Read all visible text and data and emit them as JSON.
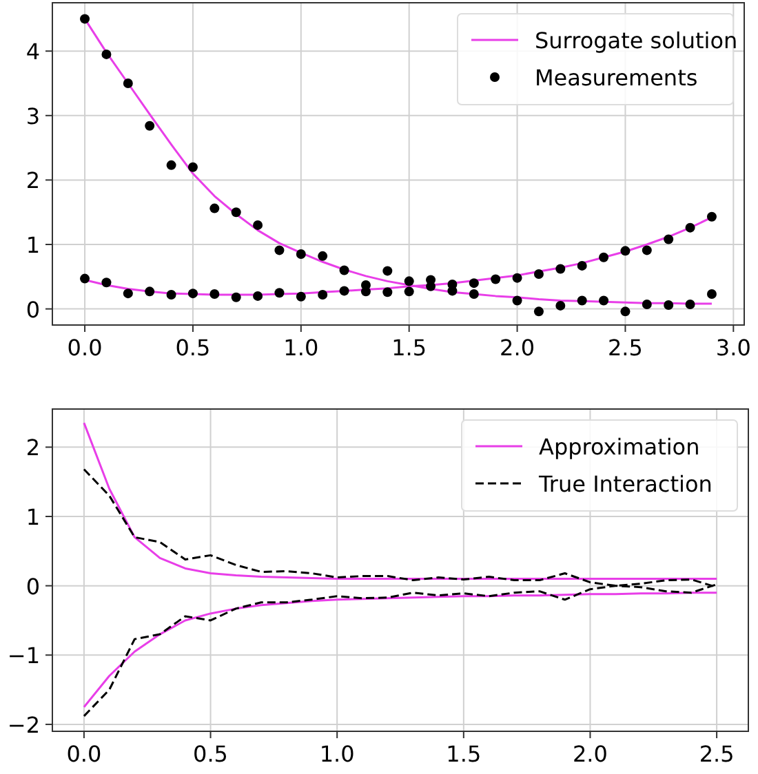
{
  "chart_data": [
    {
      "type": "line",
      "x": [
        0,
        0.1,
        0.2,
        0.3,
        0.4,
        0.5,
        0.6,
        0.7,
        0.8,
        0.9,
        1.0,
        1.1,
        1.2,
        1.3,
        1.4,
        1.5,
        1.6,
        1.7,
        1.8,
        1.9,
        2.0,
        2.1,
        2.2,
        2.3,
        2.4,
        2.5,
        2.6,
        2.7,
        2.8,
        2.9
      ],
      "xlim": [
        -0.15,
        3.05
      ],
      "xticks": [
        {
          "value": 0,
          "label": "0.0"
        },
        {
          "value": 0.5,
          "label": "0.5"
        },
        {
          "value": 1,
          "label": "1.0"
        },
        {
          "value": 1.5,
          "label": "1.5"
        },
        {
          "value": 2,
          "label": "2.0"
        },
        {
          "value": 2.5,
          "label": "2.5"
        },
        {
          "value": 3,
          "label": "3.0"
        }
      ],
      "ylim": [
        -0.25,
        4.75
      ],
      "yticks": [
        0,
        1,
        2,
        3,
        4
      ],
      "grid": true,
      "legend": "top right",
      "series": [
        {
          "name": "Surrogate solution",
          "color": "#e83ee8",
          "line_style": "solid",
          "values": [
            4.5,
            3.98,
            3.5,
            3.02,
            2.55,
            2.1,
            1.75,
            1.47,
            1.22,
            1.02,
            0.87,
            0.73,
            0.61,
            0.51,
            0.43,
            0.37,
            0.31,
            0.26,
            0.23,
            0.2,
            0.18,
            0.15,
            0.13,
            0.12,
            0.11,
            0.1,
            0.09,
            0.09,
            0.08,
            0.08
          ]
        },
        {
          "color": "#e83ee8",
          "line_style": "solid",
          "values": [
            0.45,
            0.37,
            0.31,
            0.27,
            0.24,
            0.23,
            0.22,
            0.22,
            0.22,
            0.23,
            0.24,
            0.26,
            0.28,
            0.3,
            0.32,
            0.35,
            0.37,
            0.4,
            0.44,
            0.48,
            0.52,
            0.58,
            0.64,
            0.71,
            0.8,
            0.89,
            1.0,
            1.12,
            1.26,
            1.42
          ]
        },
        {
          "type": "scatter",
          "name": "Measurements",
          "color": "#000000",
          "marker": "circle",
          "values": [
            4.5,
            3.95,
            3.5,
            2.84,
            2.23,
            2.2,
            1.56,
            1.5,
            1.3,
            0.91,
            0.85,
            0.82,
            0.6,
            0.37,
            0.59,
            0.43,
            0.35,
            0.28,
            0.23,
            null,
            0.13,
            -0.04,
            0.05,
            0.13,
            0.13,
            -0.04,
            0.07,
            0.06,
            0.07,
            0.23
          ]
        },
        {
          "type": "scatter",
          "color": "#000000",
          "marker": "circle",
          "values": [
            0.47,
            0.41,
            0.24,
            0.27,
            0.22,
            0.24,
            0.23,
            0.18,
            0.2,
            0.25,
            0.19,
            0.22,
            0.28,
            0.27,
            0.26,
            0.27,
            0.45,
            0.38,
            0.4,
            0.46,
            0.48,
            0.54,
            0.62,
            0.67,
            0.8,
            0.9,
            0.91,
            1.08,
            1.26,
            1.43
          ]
        }
      ]
    },
    {
      "type": "line",
      "x": [
        0,
        0.1,
        0.2,
        0.3,
        0.4,
        0.5,
        0.6,
        0.7,
        0.8,
        0.9,
        1.0,
        1.1,
        1.2,
        1.3,
        1.4,
        1.5,
        1.6,
        1.7,
        1.8,
        1.9,
        2.0,
        2.1,
        2.2,
        2.3,
        2.4,
        2.5
      ],
      "xlim": [
        -0.125,
        2.625
      ],
      "xticks": [
        {
          "value": 0,
          "label": "0.0"
        },
        {
          "value": 0.5,
          "label": "0.5"
        },
        {
          "value": 1,
          "label": "1.0"
        },
        {
          "value": 1.5,
          "label": "1.5"
        },
        {
          "value": 2,
          "label": "2.0"
        },
        {
          "value": 2.5,
          "label": "2.5"
        }
      ],
      "ylim": [
        -2.1,
        2.55
      ],
      "yticks": [
        {
          "value": -2,
          "label": "−2"
        },
        {
          "value": -1,
          "label": "−1"
        },
        0,
        1,
        2
      ],
      "grid": true,
      "legend": "top right",
      "series": [
        {
          "name": "Approximation",
          "color": "#e83ee8",
          "line_style": "solid",
          "values": [
            2.35,
            1.4,
            0.7,
            0.4,
            0.25,
            0.18,
            0.15,
            0.13,
            0.12,
            0.11,
            0.1,
            0.1,
            0.1,
            0.1,
            0.1,
            0.1,
            0.1,
            0.1,
            0.1,
            0.1,
            0.1,
            0.1,
            0.1,
            0.1,
            0.1,
            0.1
          ]
        },
        {
          "color": "#e83ee8",
          "line_style": "solid",
          "values": [
            -1.75,
            -1.3,
            -0.95,
            -0.7,
            -0.5,
            -0.4,
            -0.33,
            -0.28,
            -0.25,
            -0.22,
            -0.2,
            -0.19,
            -0.18,
            -0.17,
            -0.16,
            -0.15,
            -0.15,
            -0.14,
            -0.14,
            -0.13,
            -0.12,
            -0.12,
            -0.11,
            -0.11,
            -0.1,
            -0.1
          ]
        },
        {
          "name": "True Interaction",
          "color": "#000000",
          "line_style": "dashed",
          "values": [
            1.68,
            1.3,
            0.7,
            0.63,
            0.38,
            0.44,
            0.3,
            0.2,
            0.21,
            0.18,
            0.12,
            0.14,
            0.14,
            0.08,
            0.12,
            0.09,
            0.13,
            0.08,
            0.08,
            0.18,
            0.05,
            0.0,
            0.03,
            0.08,
            0.09,
            -0.02
          ]
        },
        {
          "color": "#000000",
          "line_style": "dashed",
          "values": [
            -1.88,
            -1.5,
            -0.77,
            -0.7,
            -0.44,
            -0.5,
            -0.33,
            -0.24,
            -0.24,
            -0.2,
            -0.15,
            -0.18,
            -0.17,
            -0.1,
            -0.14,
            -0.11,
            -0.15,
            -0.1,
            -0.08,
            -0.2,
            -0.05,
            0.0,
            -0.02,
            -0.08,
            -0.1,
            0.02
          ]
        }
      ]
    }
  ]
}
